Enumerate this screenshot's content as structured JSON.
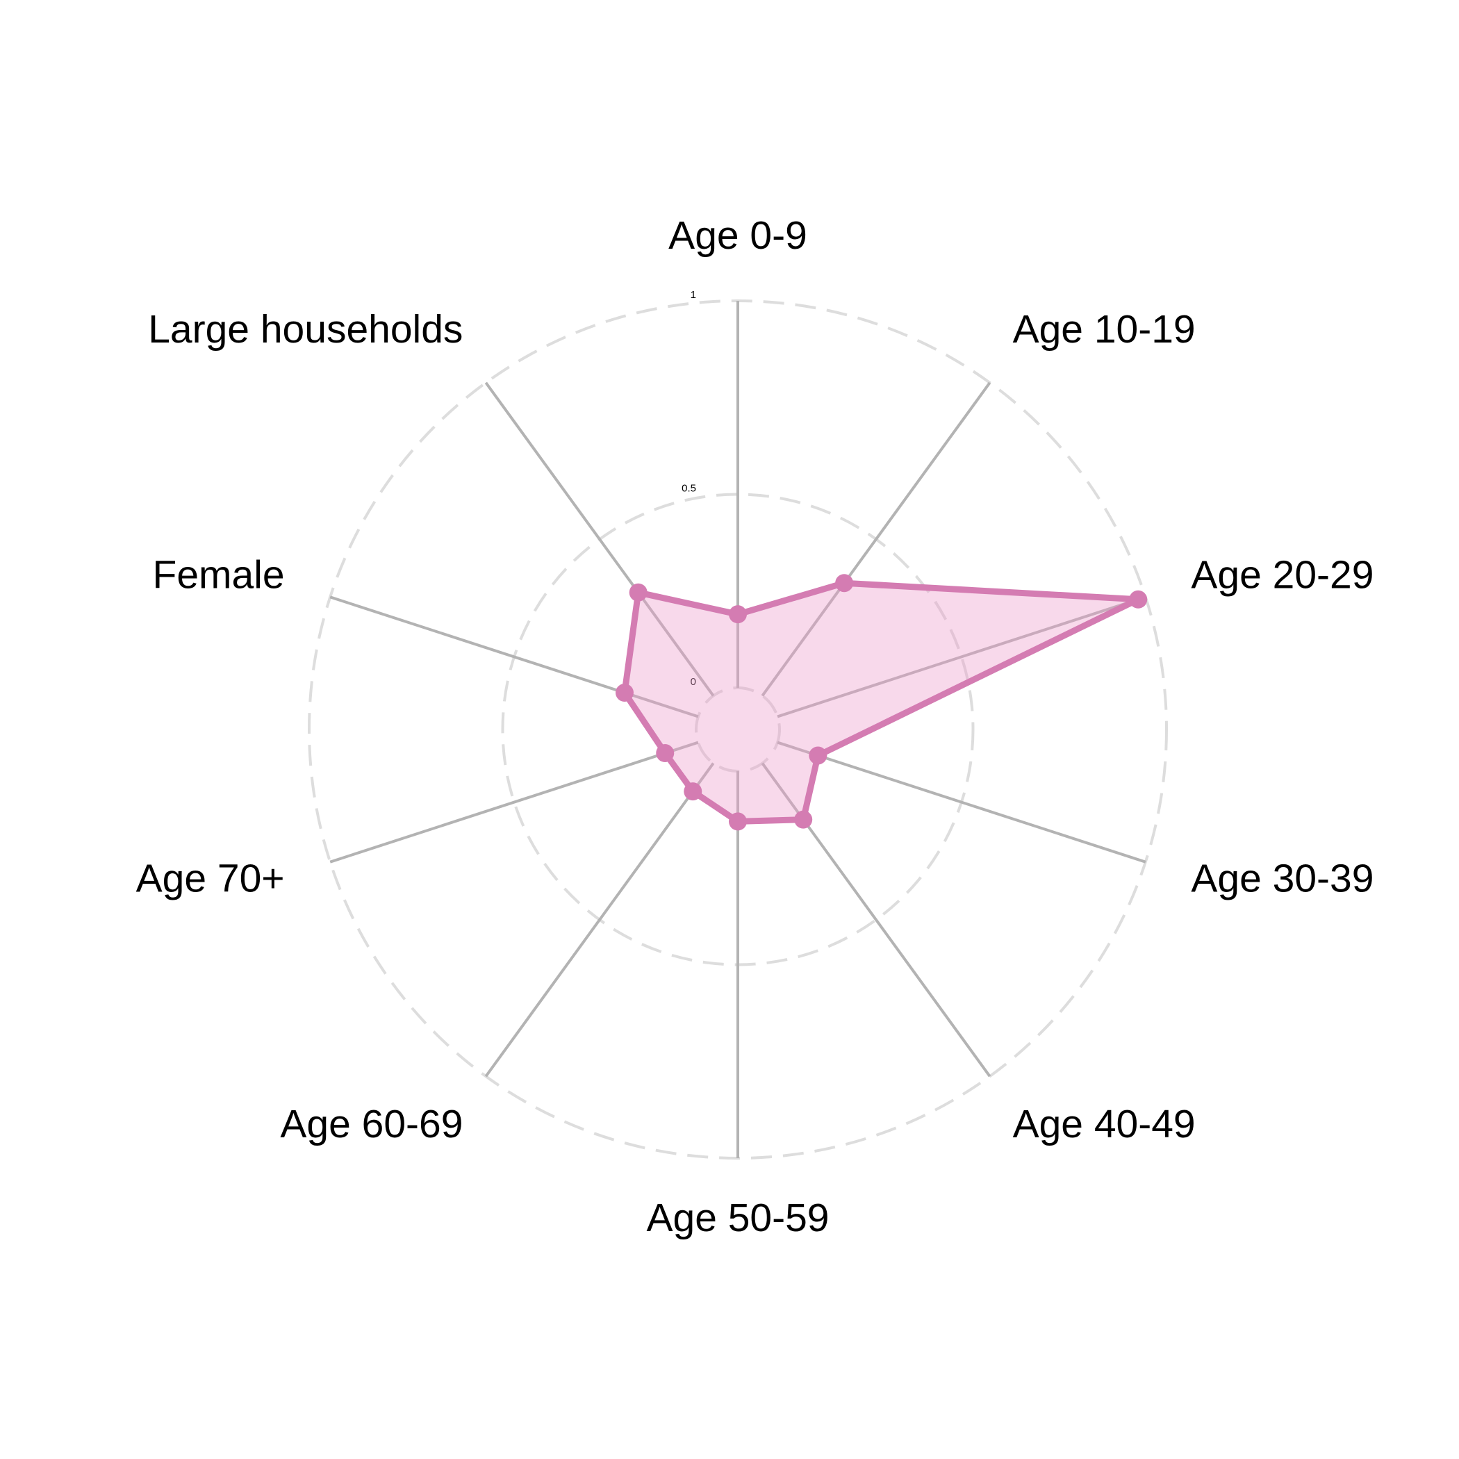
{
  "chart_data": {
    "type": "radar",
    "title": "",
    "categories": [
      "Age 0-9",
      "Age 10-19",
      "Age 20-29",
      "Age 30-39",
      "Age 40-49",
      "Age 50-59",
      "Age 60-69",
      "Age 70+",
      "Female",
      "Large households"
    ],
    "series": [
      {
        "values": [
          0.19,
          0.36,
          0.98,
          0.11,
          0.18,
          0.13,
          0.09,
          0.09,
          0.2,
          0.33
        ],
        "color": "#d47cb2",
        "fill_color": "#ec9cca"
      }
    ],
    "radial_range": [
      0,
      1
    ],
    "radial_ticks": [
      {
        "value": 0,
        "label": "0"
      },
      {
        "value": 0.5,
        "label": "0.5"
      },
      {
        "value": 1,
        "label": "1"
      }
    ],
    "grid": true,
    "legend": "none"
  }
}
